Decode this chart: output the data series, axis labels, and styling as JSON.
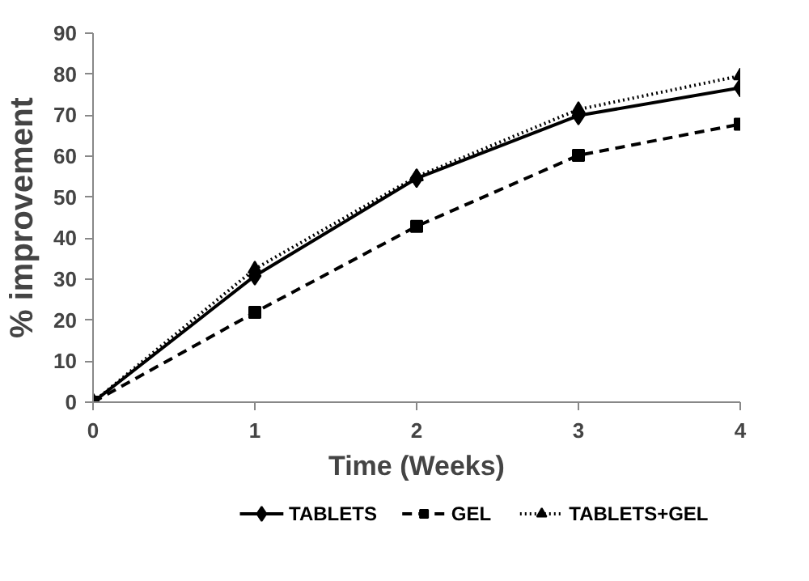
{
  "chart_data": {
    "type": "line",
    "xlabel": "Time (Weeks)",
    "ylabel": "% improvement",
    "x": [
      0,
      1,
      2,
      3,
      4
    ],
    "xlim": [
      0,
      4
    ],
    "xticks": [
      0,
      1,
      2,
      3,
      4
    ],
    "ylim": [
      0,
      90
    ],
    "yticks": [
      0,
      10,
      20,
      30,
      40,
      50,
      60,
      70,
      80,
      90
    ],
    "grid": false,
    "legend": "bottom",
    "series": [
      {
        "name": "TABLETS",
        "color": "#000000",
        "marker": "diamond",
        "line_style": "solid",
        "values": [
          0,
          30.8,
          54.6,
          69.9,
          76.7
        ]
      },
      {
        "name": "GEL",
        "color": "#000000",
        "marker": "square",
        "line_style": "dashed",
        "values": [
          0,
          21.9,
          42.9,
          60.2,
          67.8
        ]
      },
      {
        "name": "TABLETS+GEL",
        "color": "#000000",
        "marker": "triangle",
        "line_style": "dotted",
        "values": [
          0,
          32.5,
          55.0,
          71.4,
          79.6
        ]
      }
    ]
  }
}
